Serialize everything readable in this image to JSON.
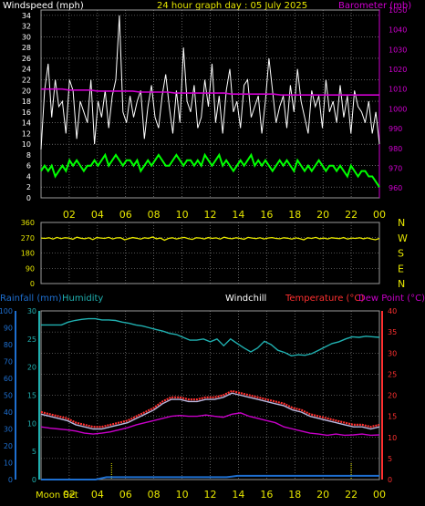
{
  "colors": {
    "windspeed": "#ffffff",
    "wind_avg": "#00ff00",
    "barometer": "#d000d0",
    "direction": "#e6e600",
    "rainfall": "#1e6fd0",
    "humidity": "#20b0b0",
    "windchill": "#b8b8e0",
    "temperature": "#ff3030",
    "dewpoint": "#c800c8",
    "axis_yellow": "#e6e600",
    "moon": "#e6e600",
    "grid": "#9a9a9a"
  },
  "header": {
    "windspeed_label": "Windspeed (mph)",
    "title": "24 hour graph day : 05 July 2025",
    "barometer_label": "Barometer (mb)"
  },
  "mid_labels": {
    "rainfall": "Rainfall (mm)",
    "humidity": "Humidity",
    "windchill": "Windchill",
    "temperature": "Temperature (°C)",
    "dewpoint": "Dew Point (°C)"
  },
  "footer": {
    "moon_label": "Moon Set"
  },
  "x_ticks": [
    "02",
    "04",
    "06",
    "08",
    "10",
    "12",
    "14",
    "16",
    "18",
    "20",
    "22",
    "00"
  ],
  "wind_chart": {
    "left_ticks": [
      "0",
      "2",
      "4",
      "6",
      "8",
      "10",
      "12",
      "14",
      "16",
      "18",
      "20",
      "22",
      "24",
      "26",
      "28",
      "30",
      "32",
      "34"
    ],
    "right_ticks": [
      "960",
      "970",
      "980",
      "990",
      "1000",
      "1010",
      "1020",
      "1030",
      "1040",
      "1050"
    ],
    "ylim": [
      0,
      35
    ],
    "baro_lim": [
      955,
      1050
    ],
    "gust": [
      9,
      20,
      25,
      15,
      22,
      17,
      18,
      12,
      22,
      20,
      11,
      18,
      16,
      14,
      22,
      10,
      18,
      15,
      20,
      13,
      19,
      22,
      34,
      16,
      14,
      19,
      15,
      18,
      20,
      11,
      17,
      21,
      15,
      13,
      19,
      23,
      17,
      12,
      20,
      14,
      28,
      18,
      16,
      21,
      13,
      15,
      22,
      17,
      25,
      14,
      19,
      12,
      20,
      24,
      16,
      18,
      13,
      21,
      22,
      15,
      17,
      19,
      12,
      18,
      26,
      20,
      14,
      17,
      19,
      13,
      21,
      16,
      24,
      18,
      15,
      12,
      20,
      17,
      19,
      13,
      22,
      16,
      18,
      14,
      21,
      15,
      19,
      12,
      20,
      17,
      16,
      14,
      18,
      12,
      16,
      10
    ],
    "average": [
      5,
      6,
      5,
      6,
      4,
      5,
      6,
      5,
      7,
      6,
      7,
      6,
      5,
      6,
      6,
      7,
      6,
      7,
      8,
      6,
      7,
      8,
      7,
      6,
      7,
      7,
      6,
      7,
      5,
      6,
      7,
      6,
      7,
      8,
      7,
      6,
      6,
      7,
      8,
      7,
      6,
      7,
      7,
      6,
      7,
      6,
      8,
      7,
      6,
      7,
      8,
      6,
      7,
      6,
      5,
      6,
      7,
      6,
      7,
      8,
      6,
      7,
      6,
      7,
      6,
      5,
      6,
      7,
      6,
      7,
      6,
      5,
      7,
      6,
      5,
      6,
      5,
      6,
      7,
      6,
      5,
      6,
      6,
      5,
      6,
      5,
      4,
      6,
      5,
      4,
      5,
      5,
      4,
      4,
      3,
      2
    ],
    "barometer": [
      1010,
      1010,
      1010,
      1010,
      1009.5,
      1009.5,
      1009.5,
      1009.5,
      1009,
      1009,
      1009,
      1009,
      1009,
      1009,
      1008.5,
      1008.5,
      1008.5,
      1008.5,
      1008.5,
      1008,
      1008,
      1008,
      1008,
      1008,
      1008,
      1008,
      1008,
      1007.5,
      1007.5,
      1007.5,
      1007.5,
      1007.5,
      1007.5,
      1007.5,
      1007,
      1007,
      1007,
      1007,
      1007,
      1007,
      1007,
      1007,
      1007,
      1007,
      1007,
      1007,
      1007,
      1007,
      1007
    ]
  },
  "dir_chart": {
    "left_ticks": [
      "0",
      "90",
      "180",
      "270",
      "360"
    ],
    "right_ticks": [
      "N",
      "E",
      "S",
      "W",
      "N"
    ],
    "ylim": [
      0,
      360
    ],
    "direction": [
      268,
      266,
      270,
      262,
      272,
      265,
      270,
      268,
      261,
      273,
      267,
      264,
      270,
      259,
      271,
      268,
      266,
      272,
      263,
      269,
      270,
      258,
      265,
      271,
      267,
      262,
      270,
      266,
      274,
      264,
      268,
      255,
      266,
      270,
      263,
      268,
      272,
      265,
      260,
      270,
      268,
      263,
      271,
      266,
      269,
      262,
      273,
      267,
      264,
      270,
      266,
      261,
      272,
      268,
      265,
      270,
      263,
      268,
      271,
      266,
      264,
      270,
      267,
      262,
      269,
      265,
      258,
      270,
      266,
      272,
      264,
      268,
      263,
      270,
      267,
      265,
      271,
      262,
      268,
      266,
      270,
      264,
      269,
      263,
      258,
      266
    ],
    "moon_marker": "Moon Set"
  },
  "temp_chart": {
    "rain_ticks": [
      "0",
      "10",
      "20",
      "30",
      "40",
      "50",
      "60",
      "70",
      "80",
      "90",
      "100"
    ],
    "hum_ticks": [
      "0",
      "5",
      "10",
      "15",
      "20",
      "25",
      "30"
    ],
    "temp_ticks": [
      "0",
      "5",
      "10",
      "15",
      "20",
      "25",
      "30",
      "35",
      "40"
    ],
    "temp_lim": [
      0,
      40
    ],
    "hum_lim": [
      0,
      30
    ],
    "rain_lim": [
      0,
      100
    ],
    "humidity": [
      27.5,
      27.5,
      27.5,
      27.5,
      28,
      28.3,
      28.5,
      28.6,
      28.6,
      28.4,
      28.4,
      28.3,
      28.0,
      27.8,
      27.5,
      27.3,
      27.0,
      26.7,
      26.4,
      26.0,
      25.8,
      25.3,
      24.8,
      24.8,
      25.0,
      24.5,
      25.0,
      23.8,
      25.0,
      24.2,
      23.4,
      22.7,
      23.4,
      24.6,
      24.0,
      23.0,
      22.6,
      22.0,
      22.2,
      22.1,
      22.4,
      23.0,
      23.6,
      24.2,
      24.5,
      25.0,
      25.4,
      25.3,
      25.5,
      25.4,
      25.3
    ],
    "temperature": [
      16,
      15.5,
      15,
      14.5,
      13.5,
      13,
      12.5,
      12.5,
      13,
      13.5,
      14,
      15,
      16,
      17,
      18.5,
      19.5,
      19.5,
      19,
      19,
      19.5,
      19.5,
      20,
      21,
      20.5,
      20,
      19.5,
      19,
      18.5,
      18,
      17,
      16.5,
      15.5,
      15,
      14.5,
      14,
      13.5,
      13,
      13,
      12.5,
      13
    ],
    "windchill": [
      15.5,
      15,
      14.5,
      14,
      13,
      12.5,
      12,
      12,
      12.5,
      13,
      13.5,
      14.5,
      15.5,
      16.5,
      18,
      19,
      19,
      18.5,
      18.5,
      19,
      19,
      19.5,
      20.5,
      20,
      19.5,
      19,
      18.5,
      18,
      17.5,
      16.5,
      16,
      15,
      14.5,
      14,
      13.5,
      13,
      12.5,
      12.5,
      12,
      12.5
    ],
    "dewpoint": [
      12.5,
      12.2,
      12,
      11.8,
      11.5,
      11,
      10.8,
      11,
      11.3,
      11.8,
      12.3,
      13,
      13.5,
      14,
      14.5,
      15,
      15.2,
      15,
      15,
      15.3,
      15,
      14.8,
      15.5,
      15.8,
      15,
      14.5,
      14,
      13.5,
      12.5,
      12,
      11.5,
      11,
      10.8,
      10.5,
      10.8,
      10.5,
      10.6,
      10.8,
      10.5,
      10.6
    ],
    "rainfall": [
      0,
      0,
      0,
      0,
      0,
      0,
      1.4,
      1.4,
      1.4,
      1.4,
      1.4,
      1.4,
      1.4,
      1.4,
      1.4,
      1.4,
      1.4,
      1.4,
      2.2,
      2.2,
      2.2,
      2.2,
      2.2,
      2.2,
      2.2,
      2.2,
      2.2,
      2.2,
      2.2,
      2.2,
      2.2,
      2.2
    ],
    "moon_markers_hour": [
      5,
      22
    ]
  }
}
